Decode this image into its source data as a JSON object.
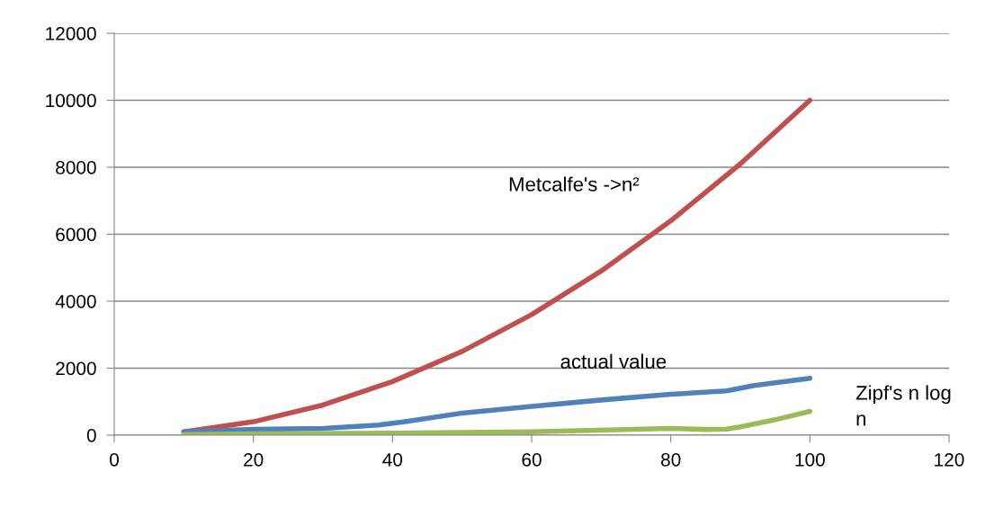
{
  "chart_data": {
    "type": "line",
    "x": [
      10,
      20,
      30,
      40,
      50,
      60,
      70,
      80,
      90,
      100
    ],
    "series": [
      {
        "name": "Metcalfe's ->n²",
        "color": "#c0504d",
        "values": [
          100,
          400,
          900,
          1600,
          2500,
          3600,
          4900,
          6400,
          8100,
          10000
        ]
      },
      {
        "name": "actual value",
        "color": "#4f81bd",
        "x": [
          10,
          20,
          30,
          38,
          42,
          50,
          60,
          70,
          80,
          88,
          92,
          100
        ],
        "values": [
          100,
          170,
          200,
          300,
          410,
          660,
          860,
          1050,
          1220,
          1320,
          1480,
          1700
        ]
      },
      {
        "name": "Zipf's n log\nn",
        "color": "#9bbb59",
        "x": [
          10,
          20,
          40,
          60,
          80,
          85,
          88,
          90,
          95,
          100
        ],
        "values": [
          20,
          40,
          60,
          100,
          200,
          170,
          180,
          250,
          460,
          710
        ]
      }
    ],
    "xlim": [
      0,
      120
    ],
    "xticks": [
      0,
      20,
      40,
      60,
      80,
      100,
      120
    ],
    "ylim": [
      0,
      12000
    ],
    "yticks": [
      0,
      2000,
      4000,
      6000,
      8000,
      10000,
      12000
    ],
    "grid": "y",
    "marker": "none",
    "line_style": "solid",
    "legend": false
  }
}
